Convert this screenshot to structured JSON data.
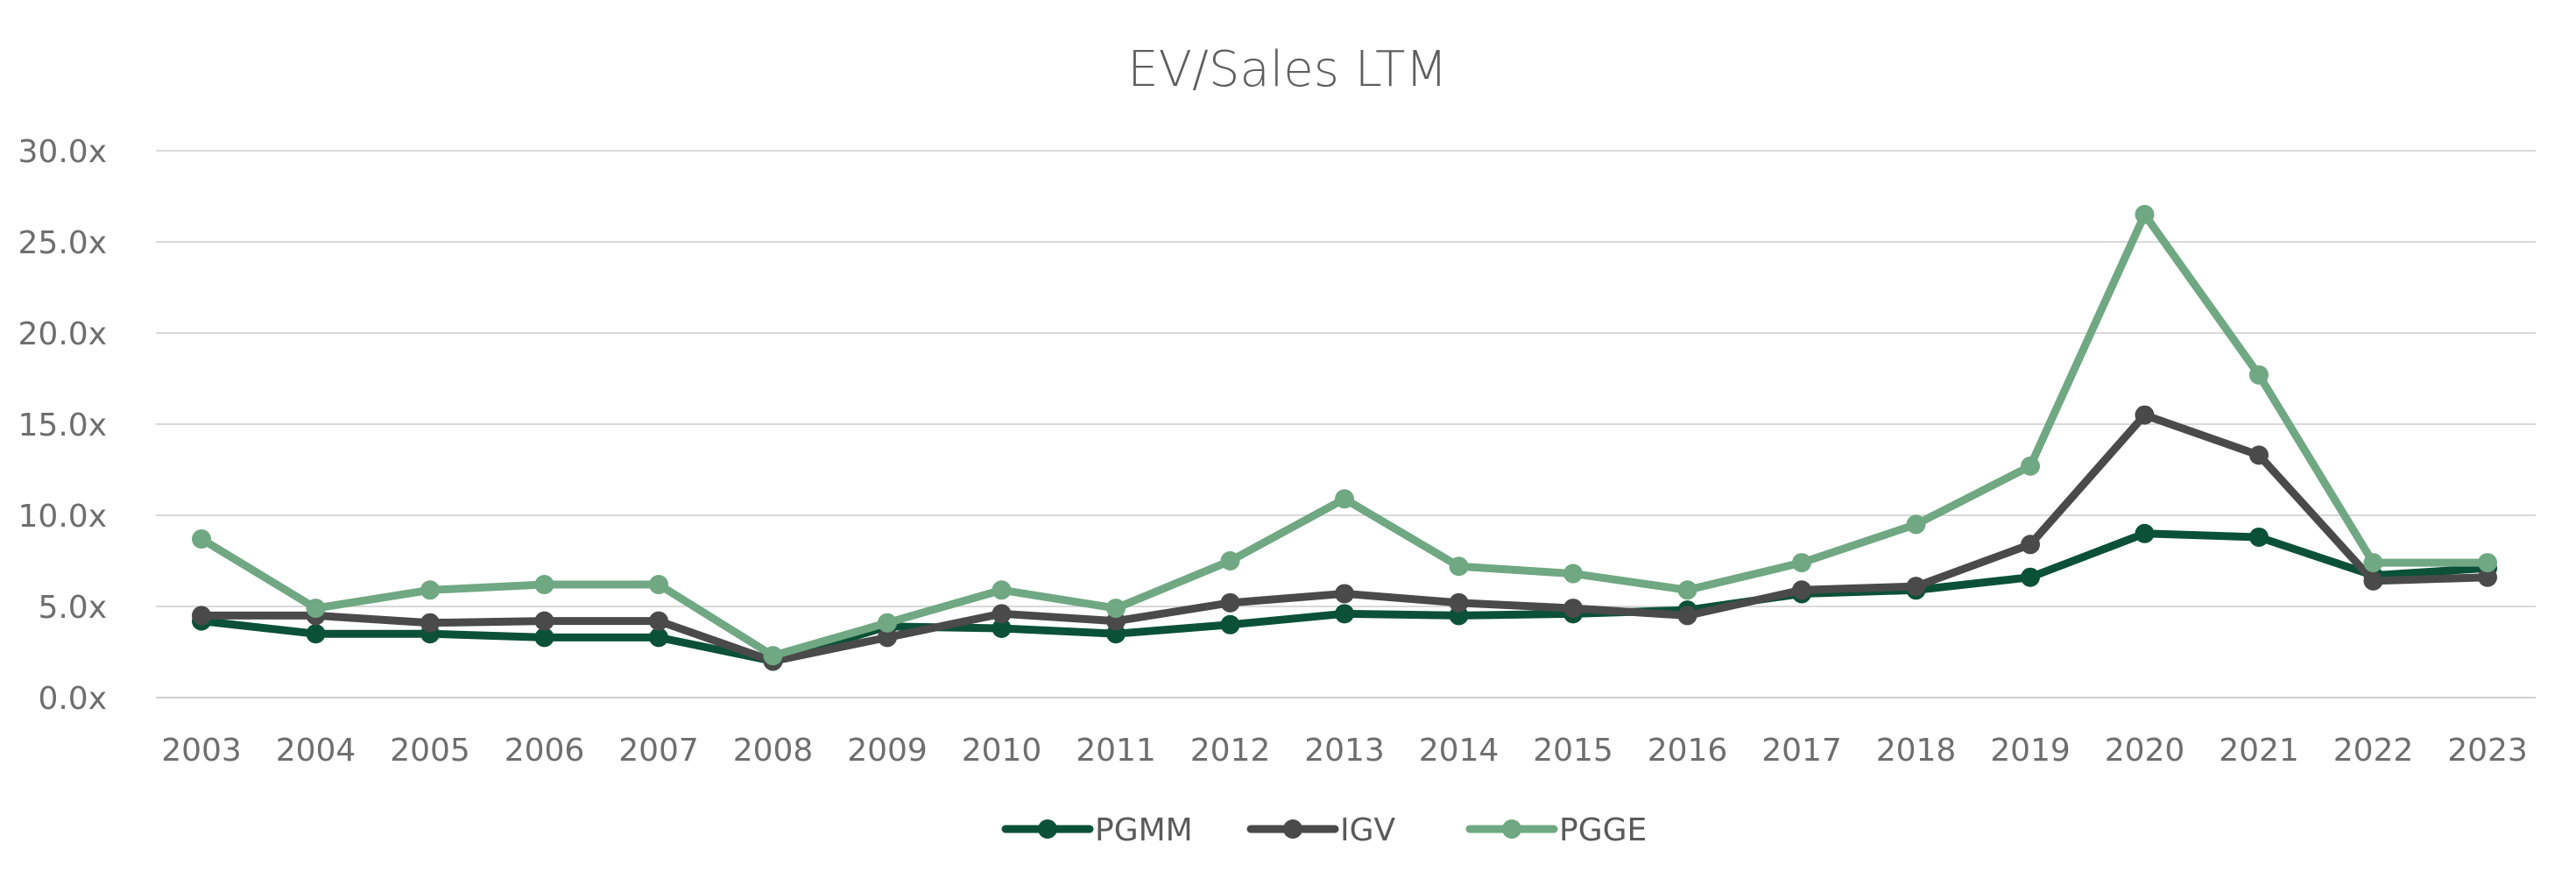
{
  "chart_data": {
    "type": "line",
    "title": "EV/Sales LTM",
    "xlabel": "",
    "ylabel": "",
    "ylim": [
      0,
      30
    ],
    "yticks": [
      "0.0x",
      "5.0x",
      "10.0x",
      "15.0x",
      "20.0x",
      "25.0x",
      "30.0x"
    ],
    "ytick_values": [
      0,
      5,
      10,
      15,
      20,
      25,
      30
    ],
    "categories": [
      "2003",
      "2004",
      "2005",
      "2006",
      "2007",
      "2008",
      "2009",
      "2010",
      "2011",
      "2012",
      "2013",
      "2014",
      "2015",
      "2016",
      "2017",
      "2018",
      "2019",
      "2020",
      "2021",
      "2022",
      "2023"
    ],
    "grid": true,
    "legend_position": "bottom",
    "series": [
      {
        "name": "PGMM",
        "color": "#0b5138",
        "values": [
          4.2,
          3.5,
          3.5,
          3.3,
          3.3,
          2.0,
          3.9,
          3.8,
          3.5,
          4.0,
          4.6,
          4.5,
          4.6,
          4.8,
          5.7,
          5.9,
          6.6,
          9.0,
          8.8,
          6.7,
          7.1
        ]
      },
      {
        "name": "IGV",
        "color": "#4a4a4a",
        "values": [
          4.5,
          4.5,
          4.1,
          4.2,
          4.2,
          2.0,
          3.3,
          4.6,
          4.2,
          5.2,
          5.7,
          5.2,
          4.9,
          4.5,
          5.9,
          6.1,
          8.4,
          15.5,
          13.3,
          6.4,
          6.6
        ]
      },
      {
        "name": "PGGE",
        "color": "#6fa882",
        "values": [
          8.7,
          4.9,
          5.9,
          6.2,
          6.2,
          2.3,
          4.1,
          5.9,
          4.9,
          7.5,
          10.9,
          7.2,
          6.8,
          5.9,
          7.4,
          9.5,
          12.7,
          26.5,
          17.7,
          7.4,
          7.4
        ]
      }
    ]
  }
}
